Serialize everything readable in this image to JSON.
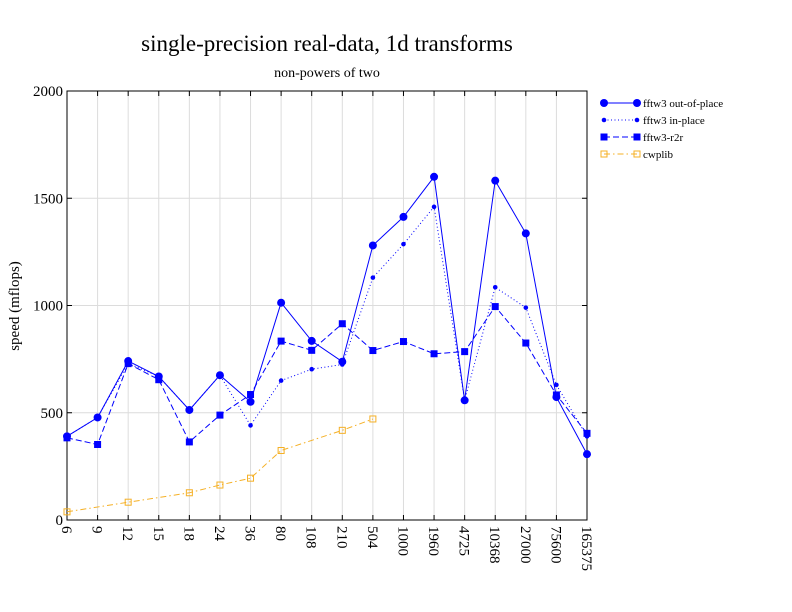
{
  "chart_data": {
    "type": "line",
    "title": "single-precision real-data, 1d transforms",
    "subtitle": "non-powers of two",
    "xlabel": "",
    "ylabel": "speed (mflops)",
    "categories": [
      "6",
      "9",
      "12",
      "15",
      "18",
      "24",
      "36",
      "80",
      "108",
      "210",
      "504",
      "1000",
      "1960",
      "4725",
      "10368",
      "27000",
      "75600",
      "165375"
    ],
    "ylim": [
      0,
      2000
    ],
    "yticks": [
      0,
      500,
      1000,
      1500,
      2000
    ],
    "grid": true,
    "legend_position": "right",
    "series": [
      {
        "name": "fftw3 out-of-place",
        "color": "#0000ff",
        "line_style": "solid",
        "marker": "filled-circle",
        "values": [
          390,
          478,
          741,
          669,
          513,
          675,
          551,
          1013,
          835,
          738,
          1280,
          1413,
          1600,
          558,
          1582,
          1336,
          573,
          307
        ]
      },
      {
        "name": "fftw3 in-place",
        "color": "#0000ff",
        "line_style": "dotted",
        "marker": "small-dot",
        "values": [
          390,
          478,
          730,
          669,
          513,
          675,
          441,
          650,
          703,
          725,
          1130,
          1286,
          1460,
          558,
          1085,
          990,
          630,
          390
        ]
      },
      {
        "name": "fftw3-r2r",
        "color": "#0000ff",
        "line_style": "dashed",
        "marker": "filled-square",
        "values": [
          383,
          352,
          729,
          654,
          364,
          489,
          585,
          834,
          791,
          915,
          790,
          832,
          775,
          785,
          995,
          825,
          583,
          404
        ]
      },
      {
        "name": "cwplib",
        "color": "#f5b025",
        "line_style": "dashdot",
        "marker": "open-square",
        "values": [
          38,
          null,
          83,
          null,
          127,
          163,
          195,
          324,
          null,
          418,
          471,
          null,
          null,
          null,
          null,
          null,
          null,
          null
        ]
      }
    ]
  }
}
